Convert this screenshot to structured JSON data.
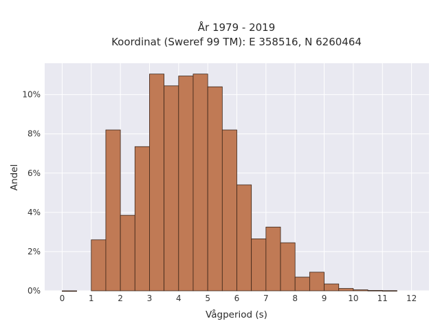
{
  "chart_data": {
    "type": "bar",
    "title_lines": [
      "År 1979 - 2019",
      "Koordinat (Sweref 99 TM): E 358516, N 6260464"
    ],
    "xlabel": "Vågperiod (s)",
    "ylabel": "Andel",
    "bin_width": 0.5,
    "bin_starts": [
      0,
      1,
      1.5,
      2,
      2.5,
      3,
      3.5,
      4,
      4.5,
      5,
      5.5,
      6,
      6.5,
      7,
      7.5,
      8,
      8.5,
      9,
      9.5,
      10,
      10.5,
      11
    ],
    "values": [
      0.0,
      2.6,
      8.2,
      3.85,
      7.35,
      11.05,
      10.45,
      10.95,
      11.05,
      10.4,
      8.2,
      5.4,
      2.65,
      3.25,
      2.45,
      0.7,
      0.95,
      0.35,
      0.12,
      0.05,
      0.02,
      0.01
    ],
    "xticks": [
      0,
      1,
      2,
      3,
      4,
      5,
      6,
      7,
      8,
      9,
      10,
      11,
      12
    ],
    "yticks": [
      0,
      2,
      4,
      6,
      8,
      10
    ],
    "ytick_suffix": "%",
    "xlim": [
      -0.6,
      12.6
    ],
    "ylim": [
      0,
      11.6
    ],
    "grid": true,
    "colors": {
      "bar_fill": "#c07a55",
      "bar_edge": "#3a2418",
      "plot_bg": "#e9e9f1",
      "grid": "#ffffff"
    }
  }
}
